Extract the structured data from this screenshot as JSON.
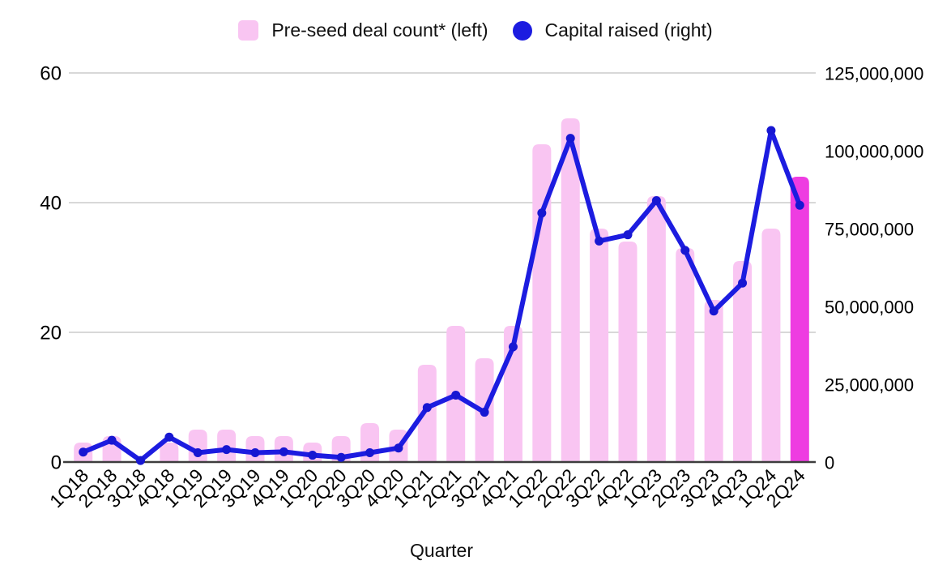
{
  "x_axis_title": "Quarter",
  "legend": {
    "bar_label": "Pre-seed deal count* (left)",
    "line_label": "Capital raised (right)"
  },
  "colors": {
    "bar_pink": "#f9c5f2",
    "bar_highlight_magenta": "#ee3ce1",
    "line_blue": "#1c1ce0",
    "marker_blue": "#1717d2",
    "grid": "#cccccc",
    "axis": "#3d3d3d",
    "text": "#000000",
    "background": "#ffffff"
  },
  "chart_data": {
    "type": "combo",
    "title": "",
    "xlabel": "Quarter",
    "ylabel_left": "",
    "ylabel_right": "",
    "grid": true,
    "legend_position": "top",
    "highlighted_category": "2Q24",
    "categories": [
      "1Q18",
      "2Q18",
      "3Q18",
      "4Q18",
      "1Q19",
      "2Q19",
      "3Q19",
      "4Q19",
      "1Q20",
      "2Q20",
      "3Q20",
      "4Q20",
      "1Q21",
      "2Q21",
      "3Q21",
      "4Q21",
      "1Q22",
      "2Q22",
      "3Q22",
      "4Q22",
      "1Q23",
      "2Q23",
      "3Q23",
      "4Q23",
      "1Q24",
      "2Q24"
    ],
    "left_axis": {
      "range": [
        0,
        60
      ],
      "ticks": [
        0,
        20,
        40,
        60
      ]
    },
    "right_axis": {
      "range": [
        0,
        125000000
      ],
      "ticks": [
        "0",
        "25,000,000",
        "50,000,000",
        "75,000,000",
        "100,000,000",
        "125,000,000"
      ]
    },
    "series": [
      {
        "name": "Pre-seed deal count* (left)",
        "type": "bar",
        "axis": "left",
        "color": "#f9c5f2",
        "highlight_index": 25,
        "highlight_color": "#ee3ce1",
        "values": [
          3,
          4,
          0,
          3,
          5,
          5,
          4,
          4,
          3,
          4,
          6,
          5,
          15,
          21,
          16,
          21,
          49,
          53,
          36,
          34,
          41,
          33,
          25,
          31,
          36,
          44
        ]
      },
      {
        "name": "Capital raised (right)",
        "type": "line",
        "axis": "right",
        "color": "#1c1ce0",
        "marker_color": "#1717d2",
        "values": [
          3200000,
          7000000,
          500000,
          8000000,
          3000000,
          4000000,
          3000000,
          3300000,
          2200000,
          1500000,
          3000000,
          4500000,
          17500000,
          21500000,
          16000000,
          37000000,
          80000000,
          104000000,
          71000000,
          73000000,
          84000000,
          68000000,
          48500000,
          57500000,
          106500000,
          82500000
        ]
      }
    ]
  }
}
